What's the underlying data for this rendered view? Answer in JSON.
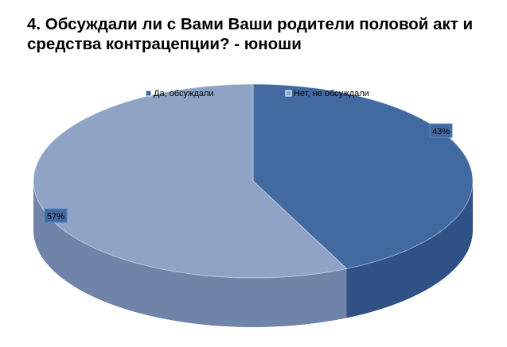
{
  "chart_data": {
    "type": "pie",
    "title": "4. Обсуждали ли с Вами Ваши родители половой акт и средства контрацепции? - юноши",
    "categories": [
      "Да, обсуждали",
      "Нет, не обсуждали"
    ],
    "values": [
      43,
      57
    ],
    "data_labels": [
      "43%",
      "57%"
    ],
    "colors": [
      "#426aa0",
      "#8ea3c6"
    ],
    "side_colors": [
      "#2f5185",
      "#7083a8"
    ],
    "legend_placement": "top",
    "style": "3d"
  }
}
